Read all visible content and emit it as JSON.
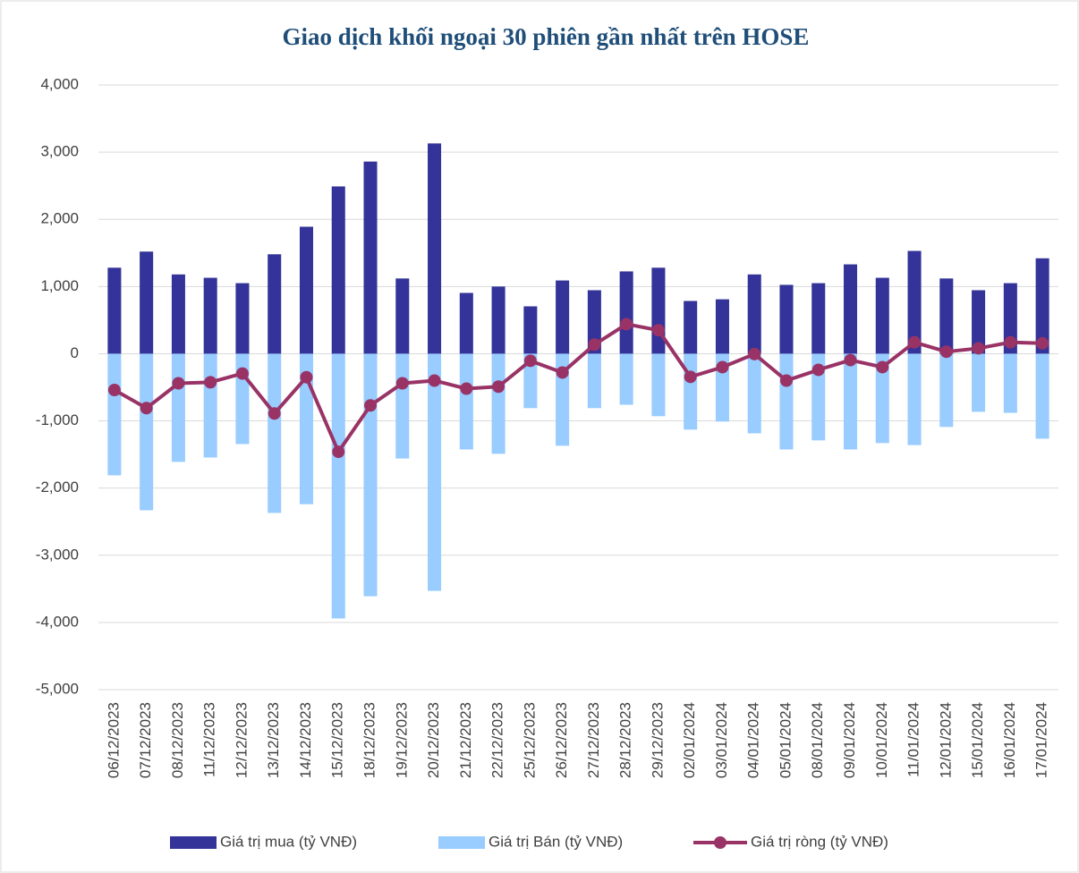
{
  "chart_data": {
    "type": "bar_line",
    "title": "Giao dịch khối ngoại 30 phiên gần nhất trên HOSE",
    "categories": [
      "06/12/2023",
      "07/12/2023",
      "08/12/2023",
      "11/12/2023",
      "12/12/2023",
      "13/12/2023",
      "14/12/2023",
      "15/12/2023",
      "18/12/2023",
      "19/12/2023",
      "20/12/2023",
      "21/12/2023",
      "22/12/2023",
      "25/12/2023",
      "26/12/2023",
      "27/12/2023",
      "28/12/2023",
      "29/12/2023",
      "02/01/2024",
      "03/01/2024",
      "04/01/2024",
      "05/01/2024",
      "08/01/2024",
      "09/01/2024",
      "10/01/2024",
      "11/01/2024",
      "12/01/2024",
      "15/01/2024",
      "16/01/2024",
      "17/01/2024"
    ],
    "series": [
      {
        "name": "Giá trị mua (tỷ VNĐ)",
        "color": "#333399",
        "kind": "bar",
        "values": [
          1280,
          1520,
          1180,
          1130,
          1050,
          1480,
          1890,
          2490,
          2860,
          1120,
          3130,
          905,
          1000,
          705,
          1090,
          945,
          1225,
          1280,
          785,
          810,
          1180,
          1025,
          1050,
          1330,
          1130,
          1530,
          1120,
          945,
          1050,
          1420
        ]
      },
      {
        "name": "Giá trị Bán (tỷ VNĐ)",
        "color": "#99ccff",
        "kind": "bar",
        "values": [
          -1810,
          -2330,
          -1610,
          -1545,
          -1345,
          -2370,
          -2240,
          -3940,
          -3610,
          -1560,
          -3530,
          -1425,
          -1490,
          -810,
          -1370,
          -810,
          -760,
          -930,
          -1130,
          -1010,
          -1185,
          -1425,
          -1290,
          -1425,
          -1330,
          -1360,
          -1090,
          -865,
          -880,
          -1265
        ]
      },
      {
        "name": "Giá trị ròng (tỷ VNĐ)",
        "color": "#993366",
        "kind": "line",
        "values": [
          -540,
          -810,
          -440,
          -425,
          -295,
          -890,
          -350,
          -1460,
          -770,
          -440,
          -400,
          -520,
          -490,
          -105,
          -280,
          135,
          440,
          350,
          -345,
          -200,
          -5,
          -400,
          -240,
          -95,
          -200,
          170,
          30,
          80,
          170,
          155
        ]
      }
    ],
    "ylim": [
      -5000,
      4000
    ],
    "yticks": [
      {
        "value": -5000,
        "label": "-5,000"
      },
      {
        "value": -4000,
        "label": "-4,000"
      },
      {
        "value": -3000,
        "label": "-3,000"
      },
      {
        "value": -2000,
        "label": "-2,000"
      },
      {
        "value": -1000,
        "label": "-1,000"
      },
      0,
      {
        "value": 1000,
        "label": "1,000"
      },
      {
        "value": 2000,
        "label": "2,000"
      },
      {
        "value": 3000,
        "label": "3,000"
      },
      {
        "value": 4000,
        "label": "4,000"
      }
    ],
    "grid": true,
    "legend": "bottom"
  }
}
